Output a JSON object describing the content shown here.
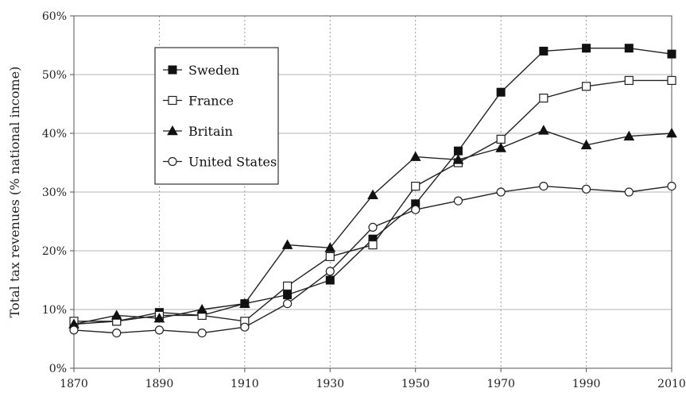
{
  "chart_data": {
    "type": "line",
    "ylabel": "Total tax revenues (% national income)",
    "xlabel": "",
    "x": [
      1870,
      1880,
      1890,
      1900,
      1910,
      1920,
      1930,
      1940,
      1950,
      1960,
      1970,
      1980,
      1990,
      2000,
      2010
    ],
    "x_ticks": [
      "1870",
      "1890",
      "1910",
      "1930",
      "1950",
      "1970",
      "1990",
      "2010"
    ],
    "y_ticks": [
      "0%",
      "10%",
      "20%",
      "30%",
      "40%",
      "50%",
      "60%"
    ],
    "xlim": [
      1870,
      2010
    ],
    "ylim": [
      0,
      60
    ],
    "grid": "y solid, x dotted",
    "legend_position": "top-left",
    "series": [
      {
        "name": "Sweden",
        "marker": "filled-square",
        "values": [
          7.5,
          8,
          9.5,
          9,
          11,
          12.5,
          15,
          22,
          28,
          37,
          47,
          54,
          54.5,
          54.5,
          53.5
        ]
      },
      {
        "name": "France",
        "marker": "open-square",
        "values": [
          8,
          8,
          9,
          9,
          8,
          14,
          19,
          21,
          31,
          35,
          39,
          46,
          48,
          49,
          49
        ]
      },
      {
        "name": "Britain",
        "marker": "filled-triangle",
        "values": [
          7.5,
          9,
          8.5,
          10,
          11,
          21,
          20.5,
          29.5,
          36,
          35.5,
          37.5,
          40.5,
          38,
          39.5,
          40
        ]
      },
      {
        "name": "United States",
        "marker": "open-circle",
        "values": [
          6.5,
          6,
          6.5,
          6,
          7,
          11,
          16.5,
          24,
          27,
          28.5,
          30,
          31,
          30.5,
          30,
          31
        ]
      }
    ]
  }
}
